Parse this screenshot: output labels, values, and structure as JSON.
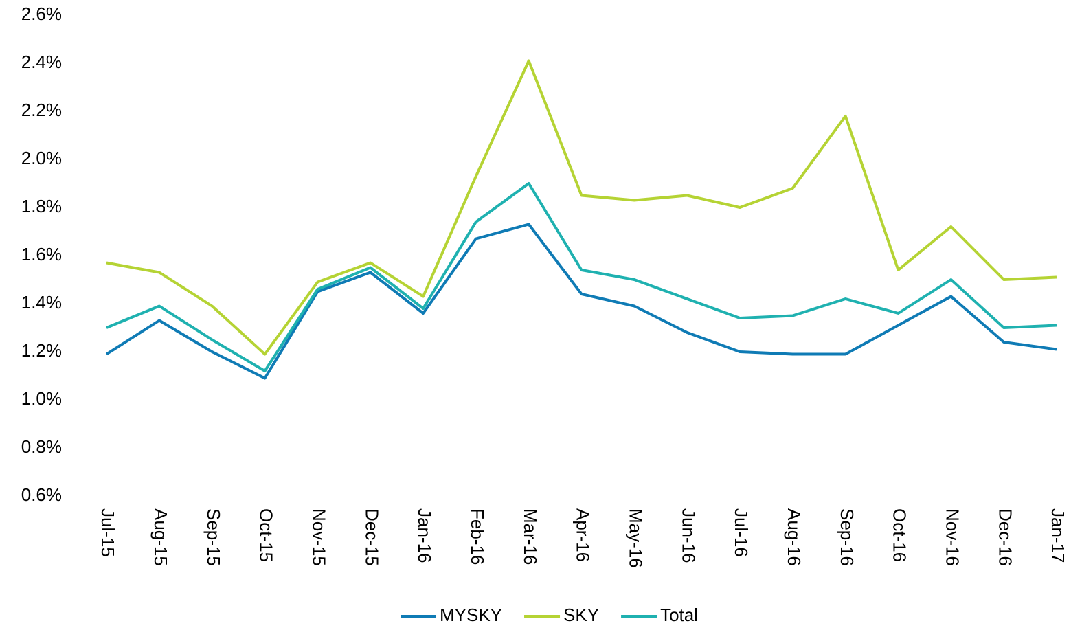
{
  "chart_data": {
    "type": "line",
    "categories": [
      "Jul-15",
      "Aug-15",
      "Sep-15",
      "Oct-15",
      "Nov-15",
      "Dec-15",
      "Jan-16",
      "Feb-16",
      "Mar-16",
      "Apr-16",
      "May-16",
      "Jun-16",
      "Jul-16",
      "Aug-16",
      "Sep-16",
      "Oct-16",
      "Nov-16",
      "Dec-16",
      "Jan-17"
    ],
    "series": [
      {
        "name": "MYSKY",
        "color": "#0f7bb5",
        "values": [
          1.19,
          1.33,
          1.2,
          1.09,
          1.45,
          1.53,
          1.36,
          1.67,
          1.73,
          1.44,
          1.39,
          1.28,
          1.2,
          1.19,
          1.19,
          1.31,
          1.43,
          1.24,
          1.21
        ]
      },
      {
        "name": "SKY",
        "color": "#b5d334",
        "values": [
          1.57,
          1.53,
          1.39,
          1.19,
          1.49,
          1.57,
          1.43,
          1.93,
          2.41,
          1.85,
          1.83,
          1.85,
          1.8,
          1.88,
          2.18,
          1.54,
          1.72,
          1.5,
          1.51
        ]
      },
      {
        "name": "Total",
        "color": "#1fb1b0",
        "values": [
          1.3,
          1.39,
          1.25,
          1.12,
          1.46,
          1.55,
          1.38,
          1.74,
          1.9,
          1.54,
          1.5,
          1.42,
          1.34,
          1.35,
          1.42,
          1.36,
          1.5,
          1.3,
          1.31
        ]
      }
    ],
    "ylim": [
      0.6,
      2.6
    ],
    "yticks": [
      {
        "value": 0.6,
        "label": "0.6%"
      },
      {
        "value": 0.8,
        "label": "0.8%"
      },
      {
        "value": 1.0,
        "label": "1.0%"
      },
      {
        "value": 1.2,
        "label": "1.2%"
      },
      {
        "value": 1.4,
        "label": "1.4%"
      },
      {
        "value": 1.6,
        "label": "1.6%"
      },
      {
        "value": 1.8,
        "label": "1.8%"
      },
      {
        "value": 2.0,
        "label": "2.0%"
      },
      {
        "value": 2.2,
        "label": "2.2%"
      },
      {
        "value": 2.4,
        "label": "2.4%"
      },
      {
        "value": 2.6,
        "label": "2.6%"
      }
    ],
    "grid": false,
    "legend": "bottom"
  }
}
